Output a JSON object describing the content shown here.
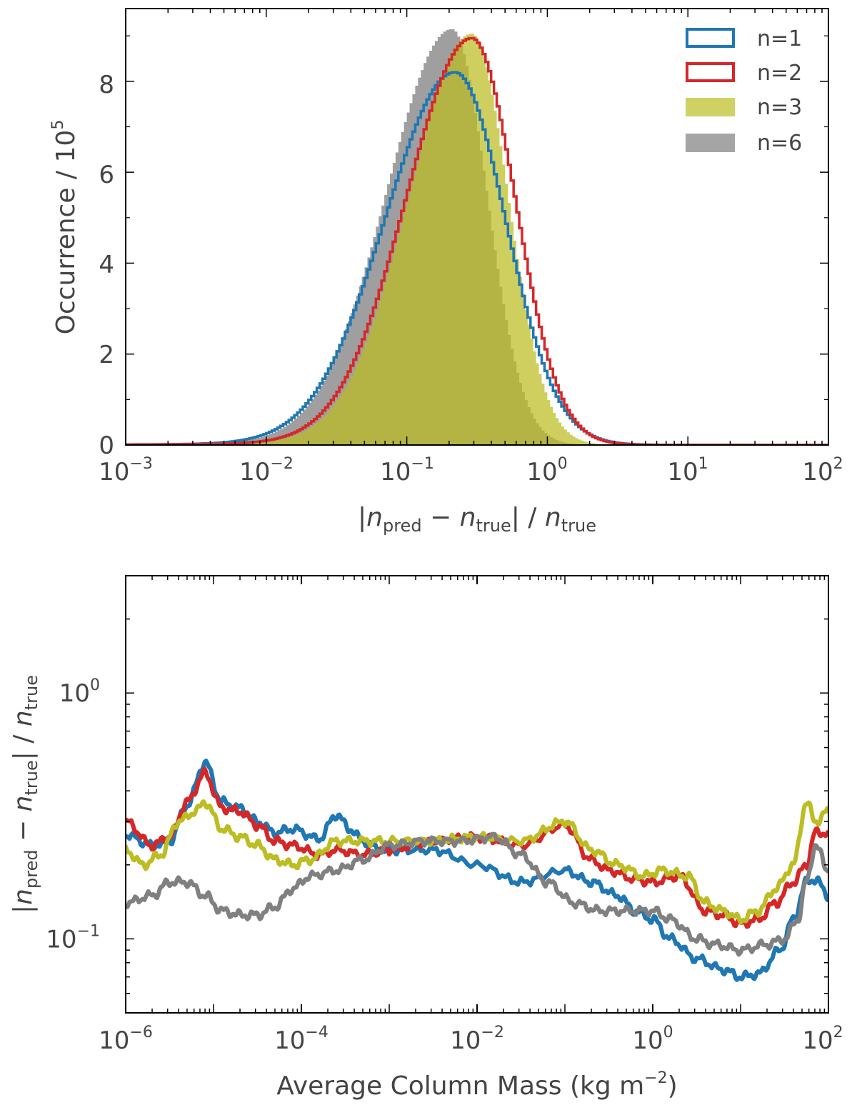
{
  "chart_data": [
    {
      "type": "histogram",
      "xscale": "log",
      "xlim": [
        0.001,
        100
      ],
      "ylim": [
        0,
        9.6
      ],
      "xlabel": {
        "bar_left": "|",
        "var1": "n",
        "sub1": "pred",
        "minus": " − ",
        "var2": "n",
        "sub2": "true",
        "bar_right": "|",
        "slash": " / ",
        "var3": "n",
        "sub3": "true"
      },
      "ylabel": {
        "text": "Occurrence / 10",
        "exp": "5"
      },
      "xticks": [
        {
          "base": "10",
          "exp": "−3",
          "value": 0.001
        },
        {
          "base": "10",
          "exp": "−2",
          "value": 0.01
        },
        {
          "base": "10",
          "exp": "−1",
          "value": 0.1
        },
        {
          "base": "10",
          "exp": "0",
          "value": 1
        },
        {
          "base": "10",
          "exp": "1",
          "value": 10
        },
        {
          "base": "10",
          "exp": "2",
          "value": 100
        }
      ],
      "yticks": [
        {
          "label": "0",
          "value": 0
        },
        {
          "label": "2",
          "value": 2
        },
        {
          "label": "4",
          "value": 4
        },
        {
          "label": "6",
          "value": 6
        },
        {
          "label": "8",
          "value": 8
        }
      ],
      "legend_position": "top-right",
      "series": [
        {
          "name": "n=1",
          "style": "step",
          "color": "#1f77b4",
          "peak_x": 0.22,
          "peak_y": 8.2,
          "sigma_left": 0.5,
          "sigma_right": 0.36
        },
        {
          "name": "n=2",
          "style": "step",
          "color": "#d62728",
          "peak_x": 0.29,
          "peak_y": 8.95,
          "sigma_left": 0.47,
          "sigma_right": 0.31
        },
        {
          "name": "n=3",
          "style": "filled",
          "color": "#bcbd22",
          "peak_x": 0.29,
          "peak_y": 9.05,
          "sigma_left": 0.45,
          "sigma_right": 0.26
        },
        {
          "name": "n=6",
          "style": "filled",
          "color": "#7f7f7f",
          "peak_x": 0.21,
          "peak_y": 9.15,
          "sigma_left": 0.47,
          "sigma_right": 0.25
        }
      ]
    },
    {
      "type": "line",
      "xscale": "log",
      "yscale": "log",
      "xlim": [
        1e-06,
        100
      ],
      "ylim": [
        0.05,
        3.0
      ],
      "xlabel": {
        "text": "Average Column Mass (kg m",
        "exp": "−2",
        "close": ")"
      },
      "ylabel": {
        "bar_left": "|",
        "var1": "n",
        "sub1": "pred",
        "minus": " − ",
        "var2": "n",
        "sub2": "true",
        "bar_right": "|",
        "slash": " / ",
        "var3": "n",
        "sub3": "true"
      },
      "xticks": [
        {
          "base": "10",
          "exp": "−6",
          "value": 1e-06
        },
        {
          "base": "10",
          "exp": "−4",
          "value": 0.0001
        },
        {
          "base": "10",
          "exp": "−2",
          "value": 0.01
        },
        {
          "base": "10",
          "exp": "0",
          "value": 1
        },
        {
          "base": "10",
          "exp": "2",
          "value": 100
        }
      ],
      "yticks": [
        {
          "base": "10",
          "exp": "−1",
          "value": 0.1
        },
        {
          "base": "10",
          "exp": "0",
          "value": 1
        }
      ],
      "series": [
        {
          "name": "n=1",
          "color": "#1f77b4",
          "x": [
            -6,
            -5.7,
            -5.5,
            -5.3,
            -5.1,
            -4.9,
            -4.7,
            -4.5,
            -4.3,
            -4.1,
            -3.8,
            -3.6,
            -3.45,
            -3.3,
            -3.1,
            -2.9,
            -2.5,
            -2.0,
            -1.5,
            -1.0,
            -0.7,
            -0.4,
            -0.2,
            0,
            0.2,
            0.5,
            0.8,
            1.0,
            1.2,
            1.45,
            1.6,
            1.75,
            1.85,
            2.0
          ],
          "y": [
            0.265,
            0.24,
            0.25,
            0.35,
            0.52,
            0.36,
            0.34,
            0.3,
            0.27,
            0.28,
            0.255,
            0.32,
            0.28,
            0.25,
            0.23,
            0.23,
            0.23,
            0.2,
            0.17,
            0.19,
            0.17,
            0.15,
            0.13,
            0.12,
            0.1,
            0.083,
            0.075,
            0.07,
            0.072,
            0.09,
            0.12,
            0.17,
            0.175,
            0.15
          ]
        },
        {
          "name": "n=2",
          "color": "#d62728",
          "x": [
            -6,
            -5.7,
            -5.5,
            -5.3,
            -5.1,
            -4.9,
            -4.7,
            -4.5,
            -4.3,
            -4.1,
            -3.8,
            -3.6,
            -3.3,
            -3.0,
            -2.5,
            -2.0,
            -1.5,
            -1.0,
            -0.7,
            -0.5,
            -0.2,
            0,
            0.3,
            0.6,
            0.8,
            1.0,
            1.2,
            1.4,
            1.6,
            1.75,
            1.85,
            2.0
          ],
          "y": [
            0.3,
            0.24,
            0.26,
            0.36,
            0.47,
            0.34,
            0.33,
            0.29,
            0.25,
            0.24,
            0.22,
            0.23,
            0.22,
            0.23,
            0.25,
            0.26,
            0.24,
            0.29,
            0.21,
            0.19,
            0.175,
            0.17,
            0.18,
            0.13,
            0.125,
            0.115,
            0.12,
            0.14,
            0.17,
            0.2,
            0.27,
            0.27
          ]
        },
        {
          "name": "n=3",
          "color": "#bcbd22",
          "x": [
            -6,
            -5.8,
            -5.6,
            -5.4,
            -5.2,
            -5.1,
            -4.9,
            -4.7,
            -4.5,
            -4.3,
            -4.1,
            -3.9,
            -3.6,
            -3.3,
            -3.0,
            -2.5,
            -2.0,
            -1.5,
            -1.0,
            -0.7,
            -0.4,
            -0.1,
            0.1,
            0.4,
            0.6,
            0.8,
            1.0,
            1.2,
            1.4,
            1.6,
            1.75,
            1.85,
            2.0
          ],
          "y": [
            0.23,
            0.2,
            0.22,
            0.3,
            0.33,
            0.36,
            0.28,
            0.26,
            0.24,
            0.21,
            0.2,
            0.21,
            0.25,
            0.25,
            0.25,
            0.25,
            0.26,
            0.25,
            0.3,
            0.23,
            0.2,
            0.18,
            0.19,
            0.18,
            0.14,
            0.13,
            0.12,
            0.13,
            0.16,
            0.2,
            0.36,
            0.3,
            0.33
          ]
        },
        {
          "name": "n=6",
          "color": "#808080",
          "x": [
            -6,
            -5.7,
            -5.5,
            -5.3,
            -5.1,
            -4.9,
            -4.7,
            -4.5,
            -4.3,
            -4.1,
            -3.9,
            -3.6,
            -3.3,
            -3.0,
            -2.6,
            -2.2,
            -1.8,
            -1.5,
            -1.2,
            -0.9,
            -0.6,
            -0.3,
            0,
            0.2,
            0.5,
            0.7,
            1.0,
            1.3,
            1.5,
            1.65,
            1.75,
            1.85,
            2.0
          ],
          "y": [
            0.14,
            0.15,
            0.17,
            0.17,
            0.15,
            0.13,
            0.125,
            0.125,
            0.135,
            0.16,
            0.18,
            0.19,
            0.21,
            0.24,
            0.25,
            0.25,
            0.26,
            0.22,
            0.17,
            0.14,
            0.13,
            0.13,
            0.13,
            0.12,
            0.1,
            0.095,
            0.09,
            0.095,
            0.1,
            0.12,
            0.17,
            0.24,
            0.19
          ]
        }
      ]
    }
  ]
}
